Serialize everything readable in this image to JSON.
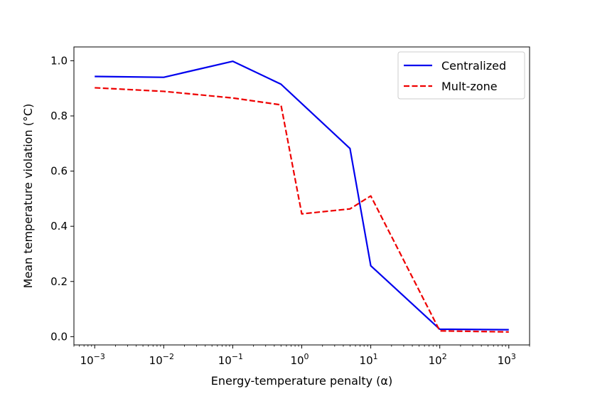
{
  "chart_data": {
    "type": "line",
    "xscale": "log",
    "xlabel": "Energy-temperature penalty (α)",
    "ylabel": "Mean temperature violation (°C)",
    "xlim": [
      0.0005,
      2000
    ],
    "ylim": [
      -0.03,
      1.05
    ],
    "x_ticks": [
      {
        "value": 0.001,
        "base": "10",
        "exp": "−3"
      },
      {
        "value": 0.01,
        "base": "10",
        "exp": "−2"
      },
      {
        "value": 0.1,
        "base": "10",
        "exp": "−1"
      },
      {
        "value": 1,
        "base": "10",
        "exp": "0"
      },
      {
        "value": 10,
        "base": "10",
        "exp": "1"
      },
      {
        "value": 100,
        "base": "10",
        "exp": "2"
      },
      {
        "value": 1000,
        "base": "10",
        "exp": "3"
      }
    ],
    "y_ticks": [
      {
        "value": 0.0,
        "label": "0.0"
      },
      {
        "value": 0.2,
        "label": "0.2"
      },
      {
        "value": 0.4,
        "label": "0.4"
      },
      {
        "value": 0.6,
        "label": "0.6"
      },
      {
        "value": 0.8,
        "label": "0.8"
      },
      {
        "value": 1.0,
        "label": "1.0"
      }
    ],
    "legend_position": "top-right",
    "series": [
      {
        "name": "Centralized",
        "color": "#0000ee",
        "style": "solid",
        "x": [
          0.001,
          0.01,
          0.1,
          0.5,
          5,
          10,
          100,
          1000
        ],
        "y": [
          0.943,
          0.94,
          0.998,
          0.915,
          0.682,
          0.257,
          0.027,
          0.025
        ]
      },
      {
        "name": "Mult-zone",
        "color": "#ee0000",
        "style": "dashed",
        "x": [
          0.001,
          0.01,
          0.1,
          0.5,
          1,
          5,
          10,
          100,
          1000
        ],
        "y": [
          0.902,
          0.889,
          0.865,
          0.84,
          0.445,
          0.463,
          0.51,
          0.021,
          0.017
        ]
      }
    ]
  }
}
